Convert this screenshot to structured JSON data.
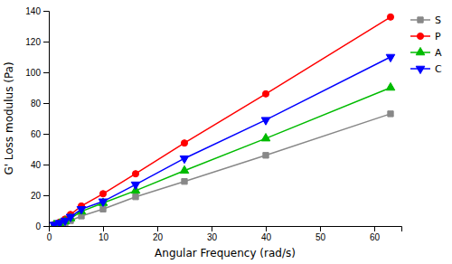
{
  "chart_data": {
    "type": "line",
    "xlabel": "Angular Frequency (rad/s)",
    "ylabel": "G' Loss modulus (Pa)",
    "x": [
      1,
      2,
      3,
      4,
      6,
      10,
      16,
      25,
      40,
      63
    ],
    "series": [
      {
        "name": "S",
        "color": "#888888",
        "marker": "square",
        "values": [
          0.5,
          1.0,
          2.0,
          3.5,
          6.5,
          11,
          19,
          29,
          46,
          73
        ]
      },
      {
        "name": "P",
        "color": "#ff0000",
        "marker": "circle",
        "values": [
          1.0,
          2.5,
          4.5,
          7.5,
          13,
          21,
          34,
          54,
          86,
          136
        ]
      },
      {
        "name": "A",
        "color": "#00bb00",
        "marker": "triangle-up",
        "values": [
          0.7,
          1.5,
          3.0,
          5.0,
          9.5,
          15,
          23,
          36,
          57,
          90
        ]
      },
      {
        "name": "C",
        "color": "#0000ff",
        "marker": "triangle-down",
        "values": [
          0.8,
          2.0,
          3.5,
          6.0,
          11,
          16,
          27,
          44,
          69,
          110
        ]
      }
    ],
    "xlim": [
      0,
      65
    ],
    "ylim": [
      0,
      140
    ],
    "xticks": [
      0,
      10,
      20,
      30,
      40,
      50,
      60
    ],
    "yticks": [
      0,
      20,
      40,
      60,
      80,
      100,
      120,
      140
    ],
    "grid": false,
    "legend": "right"
  }
}
